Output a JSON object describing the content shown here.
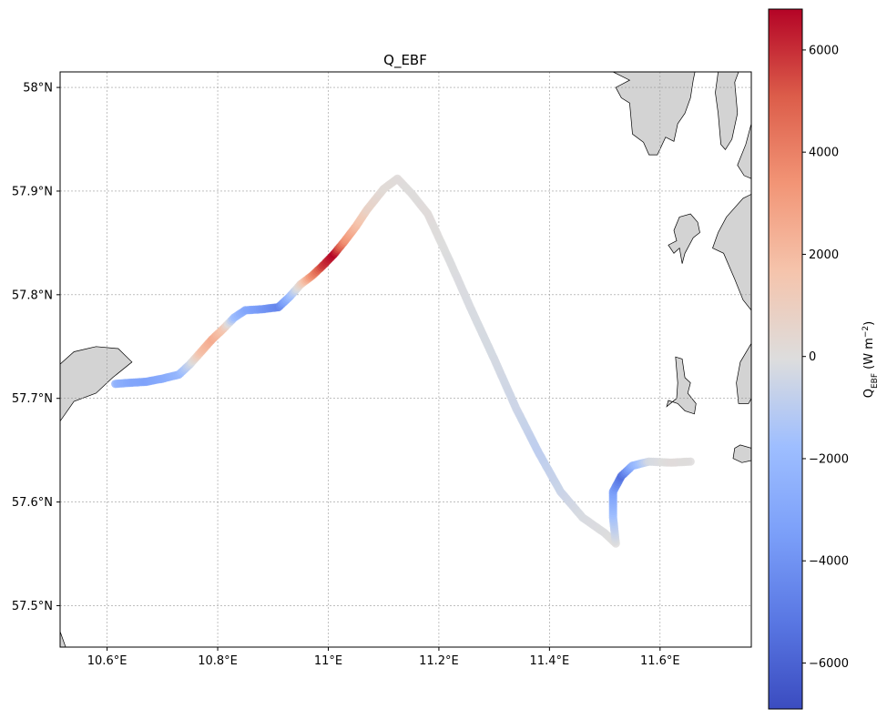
{
  "chart_data": {
    "type": "scatter",
    "title": "Q_EBF",
    "xlabel": "",
    "ylabel": "",
    "xlim": [
      10.515,
      11.765
    ],
    "ylim": [
      57.46,
      58.015
    ],
    "x_ticks": [
      10.6,
      10.8,
      11.0,
      11.2,
      11.4,
      11.6
    ],
    "x_tick_labels": [
      "10.6°E",
      "10.8°E",
      "11°E",
      "11.2°E",
      "11.4°E",
      "11.6°E"
    ],
    "y_ticks": [
      57.5,
      57.6,
      57.7,
      57.8,
      57.9,
      58.0
    ],
    "y_tick_labels": [
      "57.5°N",
      "57.6°N",
      "57.7°N",
      "57.8°N",
      "57.9°N",
      "58°N"
    ],
    "grid": true,
    "colorbar": {
      "label_main": "Q",
      "label_sub": "EBF",
      "label_rest": " (W m",
      "label_sup": "−2",
      "label_end": ")",
      "range": [
        -6900,
        6800
      ],
      "ticks": [
        6000,
        4000,
        2000,
        0,
        -2000,
        -4000,
        -6000
      ],
      "tick_labels": [
        "6000",
        "4000",
        "2000",
        "0",
        "−2000",
        "−4000",
        "−6000"
      ],
      "colormap": "coolwarm"
    },
    "land_color": "#d3d3d3",
    "track": [
      {
        "lon": 10.615,
        "lat": 57.714,
        "q": -2400
      },
      {
        "lon": 10.64,
        "lat": 57.715,
        "q": -3000
      },
      {
        "lon": 10.67,
        "lat": 57.716,
        "q": -3300
      },
      {
        "lon": 10.7,
        "lat": 57.719,
        "q": -2900
      },
      {
        "lon": 10.73,
        "lat": 57.723,
        "q": -2200
      },
      {
        "lon": 10.75,
        "lat": 57.733,
        "q": -500
      },
      {
        "lon": 10.77,
        "lat": 57.745,
        "q": 1800
      },
      {
        "lon": 10.79,
        "lat": 57.757,
        "q": 2600
      },
      {
        "lon": 10.81,
        "lat": 57.767,
        "q": 1500
      },
      {
        "lon": 10.83,
        "lat": 57.778,
        "q": -1800
      },
      {
        "lon": 10.85,
        "lat": 57.785,
        "q": -3000
      },
      {
        "lon": 10.88,
        "lat": 57.786,
        "q": -3800
      },
      {
        "lon": 10.91,
        "lat": 57.788,
        "q": -4600
      },
      {
        "lon": 10.93,
        "lat": 57.798,
        "q": -2000
      },
      {
        "lon": 10.95,
        "lat": 57.81,
        "q": 800
      },
      {
        "lon": 10.97,
        "lat": 57.818,
        "q": 3500
      },
      {
        "lon": 10.99,
        "lat": 57.828,
        "q": 5800
      },
      {
        "lon": 11.01,
        "lat": 57.839,
        "q": 6800
      },
      {
        "lon": 11.03,
        "lat": 57.852,
        "q": 3500
      },
      {
        "lon": 11.05,
        "lat": 57.866,
        "q": 2000
      },
      {
        "lon": 11.07,
        "lat": 57.882,
        "q": 800
      },
      {
        "lon": 11.1,
        "lat": 57.902,
        "q": 200
      },
      {
        "lon": 11.125,
        "lat": 57.912,
        "q": 100
      },
      {
        "lon": 11.15,
        "lat": 57.898,
        "q": 0
      },
      {
        "lon": 11.18,
        "lat": 57.878,
        "q": 100
      },
      {
        "lon": 11.22,
        "lat": 57.832,
        "q": -100
      },
      {
        "lon": 11.26,
        "lat": 57.784,
        "q": -200
      },
      {
        "lon": 11.3,
        "lat": 57.738,
        "q": -300
      },
      {
        "lon": 11.34,
        "lat": 57.69,
        "q": -500
      },
      {
        "lon": 11.38,
        "lat": 57.648,
        "q": -900
      },
      {
        "lon": 11.42,
        "lat": 57.61,
        "q": -600
      },
      {
        "lon": 11.46,
        "lat": 57.585,
        "q": -200
      },
      {
        "lon": 11.5,
        "lat": 57.57,
        "q": -100
      },
      {
        "lon": 11.52,
        "lat": 57.56,
        "q": 0
      },
      {
        "lon": 11.515,
        "lat": 57.585,
        "q": -1500
      },
      {
        "lon": 11.515,
        "lat": 57.61,
        "q": -3400
      },
      {
        "lon": 11.53,
        "lat": 57.625,
        "q": -5500
      },
      {
        "lon": 11.55,
        "lat": 57.635,
        "q": -2500
      },
      {
        "lon": 11.58,
        "lat": 57.639,
        "q": -300
      },
      {
        "lon": 11.62,
        "lat": 57.638,
        "q": 100
      },
      {
        "lon": 11.655,
        "lat": 57.639,
        "q": 0
      }
    ],
    "land": [
      [
        [
          10.515,
          57.733
        ],
        [
          10.54,
          57.745
        ],
        [
          10.58,
          57.75
        ],
        [
          10.62,
          57.748
        ],
        [
          10.645,
          57.735
        ],
        [
          10.61,
          57.72
        ],
        [
          10.58,
          57.705
        ],
        [
          10.54,
          57.697
        ],
        [
          10.515,
          57.678
        ]
      ],
      [
        [
          10.515,
          57.475
        ],
        [
          10.525,
          57.46
        ],
        [
          10.515,
          57.46
        ]
      ],
      [
        [
          11.705,
          58.015
        ],
        [
          11.7,
          57.995
        ],
        [
          11.705,
          57.975
        ],
        [
          11.71,
          57.945
        ],
        [
          11.718,
          57.94
        ],
        [
          11.73,
          57.95
        ],
        [
          11.74,
          57.975
        ],
        [
          11.735,
          58.005
        ],
        [
          11.742,
          58.015
        ]
      ],
      [
        [
          11.515,
          58.015
        ],
        [
          11.545,
          58.007
        ],
        [
          11.52,
          58.0
        ],
        [
          11.53,
          57.99
        ],
        [
          11.545,
          57.985
        ],
        [
          11.55,
          57.955
        ],
        [
          11.57,
          57.947
        ],
        [
          11.58,
          57.935
        ],
        [
          11.595,
          57.935
        ],
        [
          11.61,
          57.952
        ],
        [
          11.625,
          57.948
        ],
        [
          11.632,
          57.965
        ],
        [
          11.645,
          57.975
        ],
        [
          11.655,
          57.99
        ],
        [
          11.66,
          58.007
        ],
        [
          11.663,
          58.015
        ]
      ],
      [
        [
          11.765,
          57.965
        ],
        [
          11.755,
          57.945
        ],
        [
          11.74,
          57.925
        ],
        [
          11.752,
          57.915
        ],
        [
          11.765,
          57.912
        ]
      ],
      [
        [
          11.765,
          57.897
        ],
        [
          11.75,
          57.893
        ],
        [
          11.72,
          57.875
        ],
        [
          11.705,
          57.86
        ],
        [
          11.695,
          57.845
        ],
        [
          11.715,
          57.84
        ],
        [
          11.735,
          57.815
        ],
        [
          11.75,
          57.795
        ],
        [
          11.765,
          57.785
        ]
      ],
      [
        [
          11.765,
          57.753
        ],
        [
          11.745,
          57.735
        ],
        [
          11.738,
          57.715
        ],
        [
          11.742,
          57.695
        ],
        [
          11.76,
          57.695
        ],
        [
          11.765,
          57.7
        ]
      ],
      [
        [
          11.635,
          57.875
        ],
        [
          11.655,
          57.878
        ],
        [
          11.668,
          57.87
        ],
        [
          11.672,
          57.86
        ],
        [
          11.66,
          57.855
        ],
        [
          11.645,
          57.84
        ],
        [
          11.64,
          57.83
        ],
        [
          11.635,
          57.845
        ],
        [
          11.625,
          57.84
        ],
        [
          11.615,
          57.848
        ],
        [
          11.63,
          57.852
        ],
        [
          11.625,
          57.862
        ]
      ],
      [
        [
          11.628,
          57.74
        ],
        [
          11.64,
          57.738
        ],
        [
          11.645,
          57.72
        ],
        [
          11.655,
          57.715
        ],
        [
          11.65,
          57.705
        ],
        [
          11.665,
          57.695
        ],
        [
          11.662,
          57.685
        ],
        [
          11.645,
          57.688
        ],
        [
          11.632,
          57.695
        ],
        [
          11.615,
          57.698
        ],
        [
          11.612,
          57.692
        ],
        [
          11.63,
          57.7
        ],
        [
          11.632,
          57.715
        ]
      ],
      [
        [
          11.735,
          57.652
        ],
        [
          11.745,
          57.655
        ],
        [
          11.765,
          57.652
        ],
        [
          11.765,
          57.64
        ],
        [
          11.748,
          57.638
        ],
        [
          11.732,
          57.642
        ]
      ]
    ]
  }
}
